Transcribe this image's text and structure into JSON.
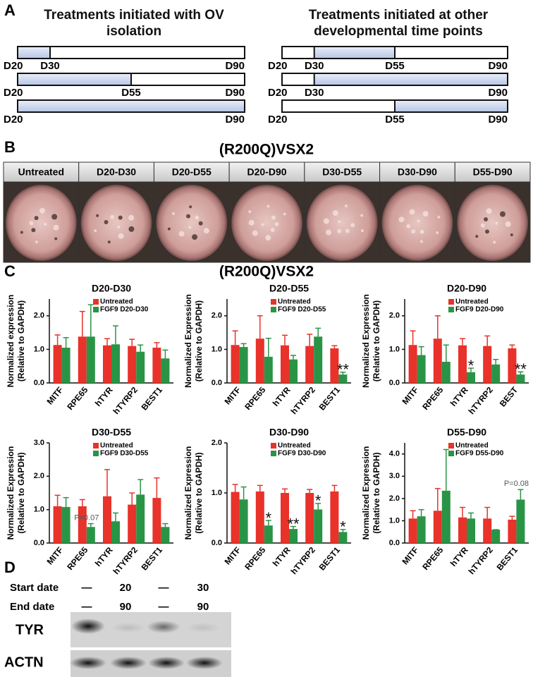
{
  "panel_a": {
    "label": "A",
    "groups": [
      {
        "title": "Treatments initiated with OV isolation",
        "rows": [
          [
            "D20",
            "D30",
            "D90"
          ],
          [
            "D20",
            "D55",
            "D90"
          ],
          [
            "D20",
            "D90"
          ]
        ]
      },
      {
        "title": "Treatments initiated at other developmental time points",
        "rows": [
          [
            "D20",
            "D30",
            "D55",
            "D90"
          ],
          [
            "D20",
            "D30",
            "D90"
          ],
          [
            "D20",
            "D55",
            "D90"
          ]
        ]
      }
    ]
  },
  "panel_b": {
    "label": "B",
    "title": "(R200Q)VSX2",
    "conditions": [
      "Untreated",
      "D20-D30",
      "D20-D55",
      "D20-D90",
      "D30-D55",
      "D30-D90",
      "D55-D90"
    ]
  },
  "panel_c": {
    "label": "C",
    "title": "(R200Q)VSX2"
  },
  "chart_data": [
    {
      "type": "bar",
      "title": "D20-D30",
      "ylabel": [
        "Normalized expression",
        "(Relative to GAPDH)"
      ],
      "categories": [
        "MITF",
        "RPE65",
        "hTYR",
        "hTYRP2",
        "BEST1"
      ],
      "series": [
        {
          "name": "Untreated",
          "color": "#e8322a",
          "values": [
            1.13,
            1.38,
            1.12,
            1.1,
            1.05
          ],
          "errors": [
            0.3,
            0.75,
            0.2,
            0.2,
            0.15
          ]
        },
        {
          "name": "FGF9 D20-D30",
          "color": "#2a9446",
          "values": [
            1.05,
            1.38,
            1.15,
            0.93,
            0.73
          ],
          "errors": [
            0.3,
            0.95,
            0.55,
            0.2,
            0.25
          ]
        }
      ],
      "ylim": [
        0,
        2.5
      ],
      "yticks": [
        {
          "value": 0,
          "label": "0.0"
        },
        {
          "value": 1,
          "label": "1.0"
        },
        {
          "value": 2,
          "label": "2.0"
        }
      ]
    },
    {
      "type": "bar",
      "title": "D20-D55",
      "ylabel": [
        "Normalized Expression",
        "(Relative to GAPDH)"
      ],
      "categories": [
        "MITF",
        "RPE65",
        "hTYR",
        "hTYRP2",
        "BEST1"
      ],
      "series": [
        {
          "name": "Untreated",
          "color": "#e8322a",
          "values": [
            1.13,
            1.32,
            1.12,
            1.1,
            1.03
          ],
          "errors": [
            0.42,
            0.68,
            0.3,
            0.35,
            0.08
          ]
        },
        {
          "name": "FGF9 D20-D55",
          "color": "#2a9446",
          "values": [
            1.07,
            0.78,
            0.7,
            1.38,
            0.25
          ],
          "errors": [
            0.1,
            0.55,
            0.12,
            0.25,
            0.07
          ],
          "annotations": [
            null,
            null,
            null,
            null,
            "**"
          ]
        }
      ],
      "ylim": [
        0,
        2.5
      ],
      "yticks": [
        {
          "value": 0,
          "label": "0.0"
        },
        {
          "value": 1,
          "label": "1.0"
        },
        {
          "value": 2,
          "label": "2.0"
        }
      ]
    },
    {
      "type": "bar",
      "title": "D20-D90",
      "ylabel": [
        "Normalized Expression",
        "(Relative to GAPDH)"
      ],
      "categories": [
        "MITF",
        "RPE65",
        "hTYR",
        "hTYRP2",
        "BEST"
      ],
      "series": [
        {
          "name": "Untreated",
          "color": "#e8322a",
          "values": [
            1.13,
            1.32,
            1.12,
            1.1,
            1.03
          ],
          "errors": [
            0.42,
            0.68,
            0.2,
            0.3,
            0.1
          ]
        },
        {
          "name": "FGF9 D20-D90",
          "color": "#2a9446",
          "values": [
            0.83,
            0.63,
            0.32,
            0.55,
            0.25
          ],
          "errors": [
            0.25,
            0.5,
            0.12,
            0.15,
            0.08
          ],
          "annotations": [
            null,
            null,
            "*",
            null,
            "**"
          ]
        }
      ],
      "ylim": [
        0,
        2.5
      ],
      "yticks": [
        {
          "value": 0,
          "label": "0.0"
        },
        {
          "value": 1,
          "label": "1.0"
        },
        {
          "value": 2,
          "label": "2.0"
        }
      ]
    },
    {
      "type": "bar",
      "title": "D30-D55",
      "ylabel": [
        "Normalized Expression",
        "(Relative to GAPDH)"
      ],
      "categories": [
        "MITF",
        "RPE65",
        "hTYR",
        "hTYRP2",
        "BEST1"
      ],
      "series": [
        {
          "name": "Untreated",
          "color": "#e8322a",
          "values": [
            1.1,
            1.1,
            1.4,
            1.15,
            1.35
          ],
          "errors": [
            0.33,
            0.2,
            0.8,
            0.35,
            0.6
          ]
        },
        {
          "name": "FGF9 D30-D55",
          "color": "#2a9446",
          "values": [
            1.08,
            0.48,
            0.65,
            1.45,
            0.48
          ],
          "errors": [
            0.28,
            0.1,
            0.25,
            0.45,
            0.1
          ],
          "annotations": [
            null,
            "P=0.07",
            null,
            null,
            null
          ]
        }
      ],
      "ylim": [
        0,
        3.0
      ],
      "yticks": [
        {
          "value": 0,
          "label": "0.0"
        },
        {
          "value": 1,
          "label": "1.0"
        },
        {
          "value": 2,
          "label": "2.0"
        },
        {
          "value": 3,
          "label": "3.0"
        }
      ]
    },
    {
      "type": "bar",
      "title": "D30-D90",
      "ylabel": [
        "Normalized Expression",
        "(Relative to GAPDH)"
      ],
      "categories": [
        "MITF",
        "RPE65",
        "hTYR",
        "hTYRP2",
        "BEST1"
      ],
      "series": [
        {
          "name": "Untreated",
          "color": "#e8322a",
          "values": [
            1.02,
            1.03,
            1.0,
            1.0,
            1.03
          ],
          "errors": [
            0.15,
            0.12,
            0.08,
            0.07,
            0.12
          ]
        },
        {
          "name": "FGF9 D30-D90",
          "color": "#2a9446",
          "values": [
            0.87,
            0.35,
            0.28,
            0.67,
            0.22
          ],
          "errors": [
            0.25,
            0.1,
            0.05,
            0.12,
            0.05
          ],
          "annotations": [
            null,
            "*",
            "**",
            "*",
            "*"
          ]
        }
      ],
      "ylim": [
        0,
        2.0
      ],
      "yticks": [
        {
          "value": 0,
          "label": "0.0"
        },
        {
          "value": 1,
          "label": "1.0"
        },
        {
          "value": 2,
          "label": "2.0"
        }
      ]
    },
    {
      "type": "bar",
      "title": "D55-D90",
      "ylabel": [
        "Normalized Expression",
        "(Relative to GAPDH)"
      ],
      "categories": [
        "MITF",
        "RPE65",
        "hTYR",
        "hTYRP2",
        "BEST1"
      ],
      "series": [
        {
          "name": "Untreated",
          "color": "#e8322a",
          "values": [
            1.1,
            1.45,
            1.15,
            1.1,
            1.05
          ],
          "errors": [
            0.35,
            1.0,
            0.45,
            0.5,
            0.15
          ]
        },
        {
          "name": "FGF9 D55-D90",
          "color": "#2a9446",
          "values": [
            1.2,
            2.35,
            1.1,
            0.6,
            1.95
          ],
          "errors": [
            0.3,
            1.85,
            0.25,
            0,
            0.45
          ],
          "annotations": [
            null,
            null,
            null,
            null,
            "P=0.08"
          ]
        }
      ],
      "ylim": [
        0,
        4.5
      ],
      "yticks": [
        {
          "value": 0,
          "label": "0.0"
        },
        {
          "value": 1,
          "label": "1.0"
        },
        {
          "value": 2,
          "label": "2.0"
        },
        {
          "value": 3,
          "label": "3.0"
        },
        {
          "value": 4,
          "label": "4.0"
        }
      ]
    }
  ],
  "panel_d": {
    "label": "D",
    "row_labels": [
      "Start date",
      "End date"
    ],
    "start": [
      "—",
      "20",
      "—",
      "30"
    ],
    "end": [
      "—",
      "90",
      "—",
      "90"
    ],
    "blots": [
      "TYR",
      "ACTN"
    ]
  }
}
